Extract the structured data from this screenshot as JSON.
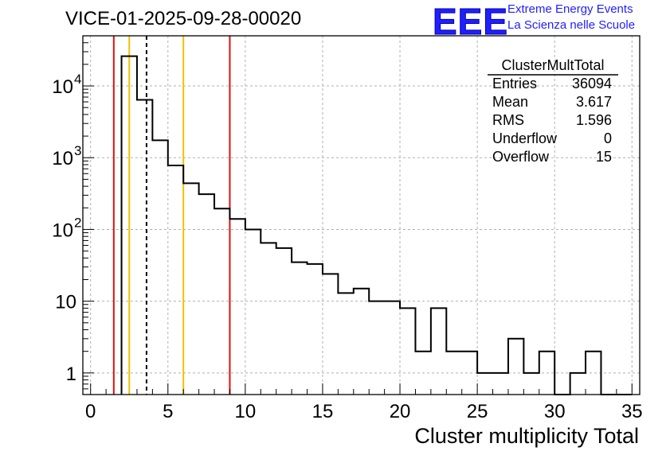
{
  "title": "VICE-01-2025-09-28-00020",
  "logo": {
    "mark": "EEE",
    "line1": "Extreme Energy Events",
    "line2": "La Scienza nelle Scuole",
    "color": "#1f1fff"
  },
  "chart_data": {
    "type": "histogram",
    "title": "VICE-01-2025-09-28-00020",
    "xlabel": "Cluster multiplicity Total",
    "ylabel": "",
    "yscale": "log",
    "xlim": [
      -0.5,
      35.5
    ],
    "ylim": [
      0.5,
      50000
    ],
    "grid": true,
    "bin_width": 1,
    "bins": [
      {
        "x": 2.5,
        "value": 26000
      },
      {
        "x": 3.5,
        "value": 6400
      },
      {
        "x": 4.5,
        "value": 1750
      },
      {
        "x": 5.5,
        "value": 780
      },
      {
        "x": 6.5,
        "value": 440
      },
      {
        "x": 7.5,
        "value": 310
      },
      {
        "x": 8.5,
        "value": 195
      },
      {
        "x": 9.5,
        "value": 140
      },
      {
        "x": 10.5,
        "value": 100
      },
      {
        "x": 11.5,
        "value": 65
      },
      {
        "x": 12.5,
        "value": 55
      },
      {
        "x": 13.5,
        "value": 35
      },
      {
        "x": 14.5,
        "value": 33
      },
      {
        "x": 15.5,
        "value": 24
      },
      {
        "x": 16.5,
        "value": 13
      },
      {
        "x": 17.5,
        "value": 15
      },
      {
        "x": 18.5,
        "value": 10
      },
      {
        "x": 19.5,
        "value": 10
      },
      {
        "x": 20.5,
        "value": 8
      },
      {
        "x": 21.5,
        "value": 2
      },
      {
        "x": 22.5,
        "value": 8
      },
      {
        "x": 23.5,
        "value": 2
      },
      {
        "x": 24.5,
        "value": 2
      },
      {
        "x": 25.5,
        "value": 1
      },
      {
        "x": 26.5,
        "value": 1
      },
      {
        "x": 27.5,
        "value": 3
      },
      {
        "x": 28.5,
        "value": 1
      },
      {
        "x": 29.5,
        "value": 2
      },
      {
        "x": 30.5,
        "value": 0
      },
      {
        "x": 31.5,
        "value": 1
      },
      {
        "x": 32.5,
        "value": 2
      },
      {
        "x": 33.5,
        "value": 0
      },
      {
        "x": 34.5,
        "value": 0
      }
    ],
    "x_ticks": [
      "0",
      "5",
      "10",
      "15",
      "20",
      "25",
      "30",
      "35"
    ],
    "y_ticks": [
      {
        "value": 1,
        "base": "1",
        "exp": ""
      },
      {
        "value": 10,
        "base": "10",
        "exp": ""
      },
      {
        "value": 100,
        "base": "10",
        "exp": "2"
      },
      {
        "value": 1000,
        "base": "10",
        "exp": "3"
      },
      {
        "value": 10000,
        "base": "10",
        "exp": "4"
      }
    ],
    "vertical_lines": [
      {
        "x": 1.5,
        "color": "#e01010",
        "style": "solid"
      },
      {
        "x": 2.5,
        "color": "#f0c000",
        "style": "solid"
      },
      {
        "x": 3.617,
        "color": "#000000",
        "style": "dashed"
      },
      {
        "x": 6.0,
        "color": "#f0c000",
        "style": "solid"
      },
      {
        "x": 9.0,
        "color": "#e01010",
        "style": "solid"
      }
    ],
    "stats_box": {
      "name": "ClusterMultTotal",
      "rows": [
        {
          "label": "Entries",
          "value": "36094"
        },
        {
          "label": "Mean",
          "value": "3.617"
        },
        {
          "label": "RMS",
          "value": "1.596"
        },
        {
          "label": "Underflow",
          "value": "0"
        },
        {
          "label": "Overflow",
          "value": "15"
        }
      ]
    }
  }
}
